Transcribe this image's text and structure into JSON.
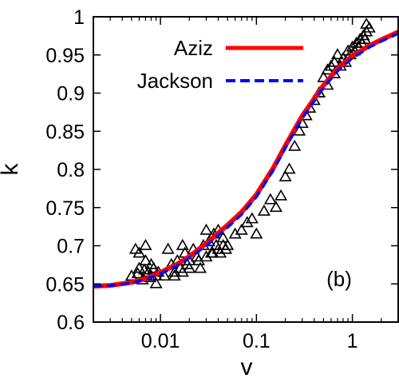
{
  "chart_data": {
    "type": "scatter",
    "x_scale": "log",
    "xlim": [
      0.002,
      3.0
    ],
    "ylim": [
      0.6,
      1.0
    ],
    "xlabel": "v",
    "ylabel": "k",
    "panel_label": "(b)",
    "x_ticks": [
      {
        "value": 0.01,
        "label": "0.01"
      },
      {
        "value": 0.1,
        "label": "0.1"
      },
      {
        "value": 1,
        "label": "1"
      }
    ],
    "y_ticks": [
      {
        "value": 0.6,
        "label": "0.6"
      },
      {
        "value": 0.65,
        "label": "0.65"
      },
      {
        "value": 0.7,
        "label": "0.7"
      },
      {
        "value": 0.75,
        "label": "0.75"
      },
      {
        "value": 0.8,
        "label": "0.8"
      },
      {
        "value": 0.85,
        "label": "0.85"
      },
      {
        "value": 0.9,
        "label": "0.9"
      },
      {
        "value": 0.95,
        "label": "0.95"
      },
      {
        "value": 1,
        "label": "1"
      }
    ],
    "legend_position": "top-right",
    "series": [
      {
        "name": "Aziz",
        "kind": "line",
        "style": "solid",
        "color": "#ff0000",
        "x": [
          0.002,
          0.003,
          0.005,
          0.007,
          0.01,
          0.015,
          0.02,
          0.03,
          0.05,
          0.07,
          0.1,
          0.15,
          0.2,
          0.3,
          0.5,
          0.7,
          1.0,
          1.5,
          2.0,
          3.0
        ],
        "y": [
          0.647,
          0.648,
          0.652,
          0.657,
          0.665,
          0.676,
          0.686,
          0.703,
          0.727,
          0.744,
          0.767,
          0.802,
          0.831,
          0.87,
          0.91,
          0.932,
          0.949,
          0.962,
          0.97,
          0.98
        ]
      },
      {
        "name": "Jackson",
        "kind": "line",
        "style": "dashed",
        "color": "#0000ff",
        "x": [
          0.002,
          0.003,
          0.005,
          0.007,
          0.01,
          0.015,
          0.02,
          0.03,
          0.05,
          0.07,
          0.1,
          0.15,
          0.2,
          0.3,
          0.5,
          0.7,
          1.0,
          1.5,
          2.0,
          3.0
        ],
        "y": [
          0.647,
          0.648,
          0.651,
          0.656,
          0.663,
          0.674,
          0.684,
          0.7,
          0.724,
          0.741,
          0.764,
          0.799,
          0.828,
          0.867,
          0.907,
          0.929,
          0.946,
          0.96,
          0.968,
          0.978
        ]
      },
      {
        "kind": "points",
        "marker": "open-triangle",
        "color": "#000000",
        "x": [
          0.005,
          0.0055,
          0.006,
          0.0065,
          0.007,
          0.0075,
          0.008,
          0.0085,
          0.009,
          0.0095,
          0.006,
          0.007,
          0.008,
          0.009,
          0.0058,
          0.0068,
          0.0078,
          0.011,
          0.012,
          0.013,
          0.014,
          0.015,
          0.016,
          0.017,
          0.018,
          0.019,
          0.02,
          0.022,
          0.024,
          0.026,
          0.028,
          0.03,
          0.032,
          0.034,
          0.036,
          0.038,
          0.04,
          0.042,
          0.045,
          0.048,
          0.05,
          0.014,
          0.017,
          0.02,
          0.025,
          0.03,
          0.035,
          0.04,
          0.045,
          0.06,
          0.07,
          0.08,
          0.09,
          0.1,
          0.12,
          0.14,
          0.16,
          0.18,
          0.2,
          0.22,
          0.25,
          0.28,
          0.3,
          0.33,
          0.36,
          0.4,
          0.45,
          0.5,
          0.55,
          0.6,
          0.65,
          0.7,
          0.8,
          0.9,
          1.0,
          1.1,
          1.2,
          1.3,
          1.4,
          1.5,
          0.45,
          0.55,
          0.65,
          0.75,
          0.85,
          0.95,
          1.05,
          1.15,
          1.25,
          1.35,
          1.4
        ],
        "y": [
          0.66,
          0.695,
          0.67,
          0.655,
          0.68,
          0.665,
          0.66,
          0.67,
          0.65,
          0.665,
          0.69,
          0.7,
          0.675,
          0.66,
          0.663,
          0.668,
          0.658,
          0.66,
          0.695,
          0.675,
          0.665,
          0.68,
          0.67,
          0.7,
          0.69,
          0.675,
          0.68,
          0.695,
          0.685,
          0.67,
          0.7,
          0.72,
          0.705,
          0.69,
          0.715,
          0.7,
          0.72,
          0.69,
          0.71,
          0.695,
          0.7,
          0.66,
          0.665,
          0.67,
          0.68,
          0.685,
          0.69,
          0.695,
          0.7,
          0.715,
          0.72,
          0.73,
          0.735,
          0.715,
          0.745,
          0.76,
          0.75,
          0.765,
          0.79,
          0.8,
          0.83,
          0.85,
          0.86,
          0.87,
          0.88,
          0.89,
          0.9,
          0.92,
          0.93,
          0.935,
          0.94,
          0.95,
          0.945,
          0.955,
          0.96,
          0.965,
          0.97,
          0.975,
          0.98,
          0.985,
          0.9,
          0.91,
          0.925,
          0.935,
          0.94,
          0.95,
          0.955,
          0.96,
          0.965,
          0.97,
          0.99
        ]
      }
    ]
  }
}
